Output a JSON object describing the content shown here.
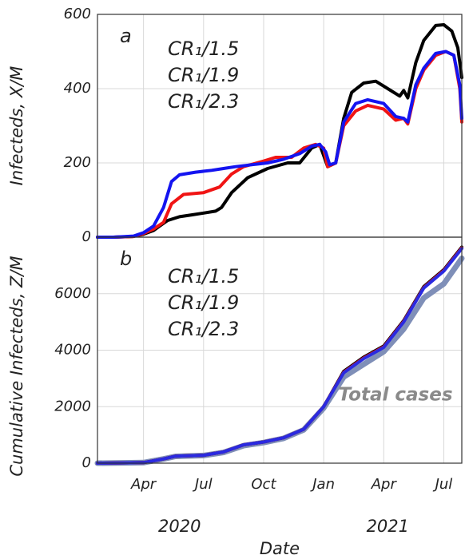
{
  "chart_data": [
    {
      "type": "line",
      "panel_label": "a",
      "ylabel": "Infecteds, X/M",
      "xlim": [
        0.7,
        18.9
      ],
      "xticks": [
        3,
        6,
        9,
        12,
        15,
        18
      ],
      "ylim": [
        0,
        600
      ],
      "yticks": [
        0,
        200,
        400,
        600
      ],
      "grid": true,
      "series": [
        {
          "name": "CR₁/1.5",
          "color": "#000000",
          "x": [
            0.7,
            1.5,
            2.5,
            3,
            3.5,
            3.8,
            4.2,
            4.8,
            5.4,
            6,
            6.6,
            6.9,
            7.4,
            8.2,
            9.2,
            10.2,
            10.8,
            11.4,
            11.8,
            12,
            12.2,
            12.6,
            13,
            13.4,
            14,
            14.6,
            15.2,
            15.8,
            16,
            16.2,
            16.6,
            17,
            17.6,
            18,
            18.4,
            18.7,
            18.9
          ],
          "values": [
            0,
            0,
            2,
            8,
            18,
            30,
            45,
            55,
            60,
            65,
            70,
            80,
            120,
            160,
            185,
            200,
            200,
            240,
            250,
            220,
            190,
            200,
            320,
            390,
            415,
            420,
            400,
            380,
            395,
            375,
            470,
            530,
            570,
            572,
            555,
            510,
            430
          ]
        },
        {
          "name": "CR₁/1.9",
          "color": "#f01414",
          "x": [
            0.7,
            1.5,
            2.5,
            3,
            3.5,
            4,
            4.4,
            5,
            6,
            6.8,
            7.4,
            8,
            9,
            9.6,
            10.4,
            11,
            11.6,
            12,
            12.2,
            12.6,
            13,
            13.6,
            14.2,
            15,
            15.6,
            16,
            16.2,
            16.6,
            17,
            17.6,
            18.1,
            18.5,
            18.8,
            18.9
          ],
          "values": [
            0,
            0,
            2,
            10,
            22,
            40,
            90,
            115,
            120,
            135,
            170,
            190,
            205,
            215,
            215,
            240,
            250,
            240,
            190,
            200,
            300,
            340,
            355,
            345,
            315,
            320,
            305,
            400,
            450,
            490,
            500,
            490,
            400,
            310
          ]
        },
        {
          "name": "CR₁/2.3",
          "color": "#1414f0",
          "x": [
            0.7,
            1.5,
            2.5,
            3,
            3.5,
            4,
            4.4,
            4.8,
            5.6,
            6.4,
            7,
            7.6,
            8.4,
            9.2,
            10,
            10.8,
            11.4,
            11.8,
            12.1,
            12.3,
            12.6,
            13,
            13.6,
            14.2,
            15,
            15.6,
            16,
            16.2,
            16.6,
            17,
            17.6,
            18.1,
            18.5,
            18.8,
            18.9
          ],
          "values": [
            0,
            0,
            3,
            12,
            30,
            80,
            150,
            168,
            175,
            180,
            185,
            190,
            195,
            200,
            210,
            225,
            245,
            250,
            230,
            195,
            200,
            310,
            360,
            370,
            360,
            325,
            320,
            310,
            410,
            455,
            495,
            500,
            490,
            410,
            320
          ]
        }
      ]
    },
    {
      "type": "line",
      "panel_label": "b",
      "ylabel": "Cumulative Infecteds, Z/M",
      "xlabel": "Date",
      "xlim": [
        0.7,
        18.9
      ],
      "xticks": [
        {
          "value": 3,
          "label": "Apr"
        },
        {
          "value": 6,
          "label": "Jul"
        },
        {
          "value": 9,
          "label": "Oct"
        },
        {
          "value": 12,
          "label": "Jan"
        },
        {
          "value": 15,
          "label": "Apr"
        },
        {
          "value": 18,
          "label": "Jul"
        }
      ],
      "years": [
        {
          "value": 4.8,
          "label": "2020"
        },
        {
          "value": 15.2,
          "label": "2021"
        }
      ],
      "ylim": [
        0,
        8000
      ],
      "yticks": [
        0,
        2000,
        4000,
        6000
      ],
      "grid": true,
      "annotation": "Total cases",
      "series": [
        {
          "name": "Total cases",
          "color": "#7f8fb8",
          "width": 7,
          "x": [
            0.7,
            3,
            4,
            4.6,
            6,
            7,
            8,
            9,
            10,
            11,
            12,
            13,
            14,
            15,
            16,
            17,
            18,
            18.9
          ],
          "values": [
            0,
            20,
            150,
            240,
            270,
            380,
            620,
            730,
            880,
            1180,
            1950,
            3050,
            3500,
            3950,
            4750,
            5850,
            6350,
            7250
          ]
        },
        {
          "name": "CR₁/1.5",
          "color": "#000000",
          "x": [
            0.7,
            3,
            4,
            4.6,
            6,
            7,
            8,
            9,
            10,
            11,
            12,
            13,
            14,
            15,
            16,
            17,
            18,
            18.9
          ],
          "values": [
            0,
            20,
            150,
            250,
            280,
            400,
            650,
            750,
            900,
            1200,
            2000,
            3250,
            3750,
            4150,
            5050,
            6250,
            6850,
            7650
          ]
        },
        {
          "name": "CR₁/1.9",
          "color": "#f01414",
          "x": [
            0.7,
            3,
            4,
            4.6,
            6,
            7,
            8,
            9,
            10,
            11,
            12,
            13,
            14,
            15,
            16,
            17,
            18,
            18.9
          ],
          "values": [
            0,
            20,
            150,
            250,
            280,
            400,
            650,
            750,
            900,
            1200,
            2000,
            3220,
            3720,
            4120,
            5020,
            6220,
            6820,
            7620
          ]
        },
        {
          "name": "CR₁/2.3",
          "color": "#2a2ae0",
          "x": [
            0.7,
            3,
            4,
            4.6,
            6,
            7,
            8,
            9,
            10,
            11,
            12,
            13,
            14,
            15,
            16,
            17,
            18,
            18.9
          ],
          "values": [
            0,
            20,
            150,
            250,
            280,
            400,
            650,
            750,
            900,
            1200,
            2000,
            3200,
            3700,
            4100,
            5000,
            6200,
            6800,
            7600
          ]
        }
      ]
    }
  ]
}
